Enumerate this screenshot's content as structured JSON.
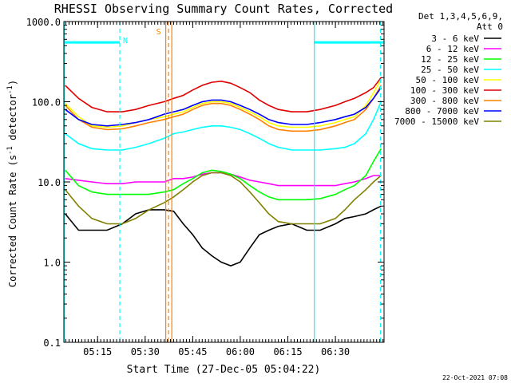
{
  "chart_data": {
    "type": "line",
    "title": "RHESSI Observing Summary Count Rates, Corrected",
    "xlabel": "Start Time (27-Dec-05 05:04:22)",
    "ylabel_parts": [
      "Corrected Count Rate (s",
      "-1",
      " detector",
      "-1",
      ")"
    ],
    "y_scale": "log",
    "ylim": [
      0.1,
      1000
    ],
    "xlim": [
      5.0728,
      6.7556
    ],
    "x_ticks": [
      {
        "t": 5.25,
        "label": "05:15"
      },
      {
        "t": 5.5,
        "label": "05:30"
      },
      {
        "t": 5.75,
        "label": "05:45"
      },
      {
        "t": 6.0,
        "label": "06:00"
      },
      {
        "t": 6.25,
        "label": "06:15"
      },
      {
        "t": 6.5,
        "label": "06:30"
      }
    ],
    "y_ticks": [
      {
        "v": 1000,
        "label": "1000.0"
      },
      {
        "v": 100,
        "label": "100.0"
      },
      {
        "v": 10,
        "label": "10.0"
      },
      {
        "v": 1,
        "label": "1.0"
      },
      {
        "v": 0.1,
        "label": "0.1"
      }
    ],
    "legend_title": [
      "Det 1,3,4,5,6,9,",
      "Att 0"
    ],
    "series": [
      {
        "name": "3 - 6 keV",
        "color": "#000000",
        "points": [
          [
            5.08,
            4.0
          ],
          [
            5.15,
            2.5
          ],
          [
            5.22,
            2.5
          ],
          [
            5.3,
            2.5
          ],
          [
            5.38,
            3.0
          ],
          [
            5.45,
            4.0
          ],
          [
            5.52,
            4.5
          ],
          [
            5.6,
            4.5
          ],
          [
            5.65,
            4.3
          ],
          [
            5.7,
            3.0
          ],
          [
            5.75,
            2.2
          ],
          [
            5.8,
            1.5
          ],
          [
            5.85,
            1.2
          ],
          [
            5.9,
            1.0
          ],
          [
            5.95,
            0.9
          ],
          [
            6.0,
            1.0
          ],
          [
            6.05,
            1.5
          ],
          [
            6.1,
            2.2
          ],
          [
            6.15,
            2.5
          ],
          [
            6.2,
            2.8
          ],
          [
            6.27,
            3.0
          ],
          [
            6.35,
            2.5
          ],
          [
            6.42,
            2.5
          ],
          [
            6.5,
            3.0
          ],
          [
            6.55,
            3.5
          ],
          [
            6.6,
            3.7
          ],
          [
            6.66,
            4.0
          ],
          [
            6.7,
            4.5
          ],
          [
            6.74,
            5.0
          ]
        ]
      },
      {
        "name": "6 - 12 keV",
        "color": "#ff00ff",
        "points": [
          [
            5.08,
            11.0
          ],
          [
            5.15,
            10.5
          ],
          [
            5.22,
            10.0
          ],
          [
            5.3,
            9.5
          ],
          [
            5.38,
            9.5
          ],
          [
            5.45,
            10.0
          ],
          [
            5.52,
            10.0
          ],
          [
            5.6,
            10.0
          ],
          [
            5.65,
            11.0
          ],
          [
            5.7,
            11.0
          ],
          [
            5.75,
            11.5
          ],
          [
            5.8,
            12.5
          ],
          [
            5.85,
            13.0
          ],
          [
            5.9,
            13.0
          ],
          [
            5.95,
            12.5
          ],
          [
            6.0,
            11.5
          ],
          [
            6.05,
            10.5
          ],
          [
            6.1,
            10.0
          ],
          [
            6.15,
            9.5
          ],
          [
            6.2,
            9.0
          ],
          [
            6.27,
            9.0
          ],
          [
            6.35,
            9.0
          ],
          [
            6.42,
            9.0
          ],
          [
            6.5,
            9.0
          ],
          [
            6.55,
            9.5
          ],
          [
            6.6,
            10.0
          ],
          [
            6.66,
            11.0
          ],
          [
            6.7,
            12.0
          ],
          [
            6.74,
            12.0
          ]
        ]
      },
      {
        "name": "12 - 25 keV",
        "color": "#00ff00",
        "points": [
          [
            5.08,
            14.0
          ],
          [
            5.15,
            9.0
          ],
          [
            5.22,
            7.5
          ],
          [
            5.3,
            7.0
          ],
          [
            5.38,
            7.0
          ],
          [
            5.45,
            7.0
          ],
          [
            5.52,
            7.0
          ],
          [
            5.6,
            7.5
          ],
          [
            5.65,
            8.0
          ],
          [
            5.7,
            9.5
          ],
          [
            5.75,
            11.0
          ],
          [
            5.8,
            13.0
          ],
          [
            5.85,
            14.0
          ],
          [
            5.9,
            13.5
          ],
          [
            5.95,
            12.5
          ],
          [
            6.0,
            11.0
          ],
          [
            6.05,
            9.0
          ],
          [
            6.1,
            7.5
          ],
          [
            6.15,
            6.5
          ],
          [
            6.2,
            6.0
          ],
          [
            6.27,
            6.0
          ],
          [
            6.35,
            6.0
          ],
          [
            6.42,
            6.2
          ],
          [
            6.5,
            7.0
          ],
          [
            6.55,
            8.0
          ],
          [
            6.6,
            9.0
          ],
          [
            6.66,
            12.0
          ],
          [
            6.7,
            18.0
          ],
          [
            6.74,
            26.0
          ]
        ]
      },
      {
        "name": "25 - 50 keV",
        "color": "#00ffff",
        "points": [
          [
            5.08,
            40.0
          ],
          [
            5.15,
            30.0
          ],
          [
            5.22,
            26.0
          ],
          [
            5.3,
            25.0
          ],
          [
            5.38,
            25.0
          ],
          [
            5.45,
            27.0
          ],
          [
            5.52,
            30.0
          ],
          [
            5.6,
            35.0
          ],
          [
            5.65,
            40.0
          ],
          [
            5.7,
            42.0
          ],
          [
            5.75,
            45.0
          ],
          [
            5.8,
            48.0
          ],
          [
            5.85,
            50.0
          ],
          [
            5.9,
            50.0
          ],
          [
            5.95,
            48.0
          ],
          [
            6.0,
            45.0
          ],
          [
            6.05,
            40.0
          ],
          [
            6.1,
            35.0
          ],
          [
            6.15,
            30.0
          ],
          [
            6.2,
            27.0
          ],
          [
            6.27,
            25.0
          ],
          [
            6.35,
            25.0
          ],
          [
            6.42,
            25.0
          ],
          [
            6.5,
            26.0
          ],
          [
            6.55,
            27.0
          ],
          [
            6.6,
            30.0
          ],
          [
            6.66,
            40.0
          ],
          [
            6.7,
            60.0
          ],
          [
            6.74,
            100.0
          ]
        ]
      },
      {
        "name": "50 - 100 keV",
        "color": "#ffff00",
        "points": [
          [
            5.08,
            95.0
          ],
          [
            5.15,
            65.0
          ],
          [
            5.22,
            50.0
          ],
          [
            5.3,
            48.0
          ],
          [
            5.38,
            50.0
          ],
          [
            5.45,
            55.0
          ],
          [
            5.52,
            60.0
          ],
          [
            5.6,
            65.0
          ],
          [
            5.65,
            70.0
          ],
          [
            5.7,
            75.0
          ],
          [
            5.75,
            85.0
          ],
          [
            5.8,
            95.0
          ],
          [
            5.85,
            100.0
          ],
          [
            5.9,
            100.0
          ],
          [
            5.95,
            95.0
          ],
          [
            6.0,
            85.0
          ],
          [
            6.05,
            75.0
          ],
          [
            6.1,
            65.0
          ],
          [
            6.15,
            55.0
          ],
          [
            6.2,
            50.0
          ],
          [
            6.27,
            48.0
          ],
          [
            6.35,
            48.0
          ],
          [
            6.42,
            50.0
          ],
          [
            6.5,
            55.0
          ],
          [
            6.55,
            60.0
          ],
          [
            6.6,
            65.0
          ],
          [
            6.66,
            90.0
          ],
          [
            6.7,
            130.0
          ],
          [
            6.74,
            190.0
          ]
        ]
      },
      {
        "name": "100 - 300 keV",
        "color": "#e00000",
        "points": [
          [
            5.08,
            160.0
          ],
          [
            5.15,
            110.0
          ],
          [
            5.22,
            85.0
          ],
          [
            5.3,
            75.0
          ],
          [
            5.38,
            75.0
          ],
          [
            5.45,
            80.0
          ],
          [
            5.52,
            90.0
          ],
          [
            5.6,
            100.0
          ],
          [
            5.65,
            110.0
          ],
          [
            5.7,
            120.0
          ],
          [
            5.75,
            140.0
          ],
          [
            5.8,
            160.0
          ],
          [
            5.85,
            175.0
          ],
          [
            5.9,
            180.0
          ],
          [
            5.95,
            170.0
          ],
          [
            6.0,
            150.0
          ],
          [
            6.05,
            130.0
          ],
          [
            6.1,
            105.0
          ],
          [
            6.15,
            90.0
          ],
          [
            6.2,
            80.0
          ],
          [
            6.27,
            75.0
          ],
          [
            6.35,
            75.0
          ],
          [
            6.42,
            80.0
          ],
          [
            6.5,
            90.0
          ],
          [
            6.55,
            100.0
          ],
          [
            6.6,
            110.0
          ],
          [
            6.66,
            130.0
          ],
          [
            6.7,
            150.0
          ],
          [
            6.74,
            200.0
          ]
        ]
      },
      {
        "name": "300 - 800 keV",
        "color": "#ff8000",
        "points": [
          [
            5.08,
            90.0
          ],
          [
            5.15,
            60.0
          ],
          [
            5.22,
            48.0
          ],
          [
            5.3,
            45.0
          ],
          [
            5.38,
            46.0
          ],
          [
            5.45,
            50.0
          ],
          [
            5.52,
            55.0
          ],
          [
            5.6,
            60.0
          ],
          [
            5.65,
            65.0
          ],
          [
            5.7,
            70.0
          ],
          [
            5.75,
            80.0
          ],
          [
            5.8,
            90.0
          ],
          [
            5.85,
            95.0
          ],
          [
            5.9,
            95.0
          ],
          [
            5.95,
            90.0
          ],
          [
            6.0,
            80.0
          ],
          [
            6.05,
            70.0
          ],
          [
            6.1,
            60.0
          ],
          [
            6.15,
            50.0
          ],
          [
            6.2,
            45.0
          ],
          [
            6.27,
            43.0
          ],
          [
            6.35,
            43.0
          ],
          [
            6.42,
            45.0
          ],
          [
            6.5,
            50.0
          ],
          [
            6.55,
            55.0
          ],
          [
            6.6,
            60.0
          ],
          [
            6.66,
            80.0
          ],
          [
            6.7,
            110.0
          ],
          [
            6.74,
            160.0
          ]
        ]
      },
      {
        "name": "800 - 7000 keV",
        "color": "#0000ff",
        "points": [
          [
            5.08,
            80.0
          ],
          [
            5.15,
            60.0
          ],
          [
            5.22,
            52.0
          ],
          [
            5.3,
            50.0
          ],
          [
            5.38,
            52.0
          ],
          [
            5.45,
            55.0
          ],
          [
            5.52,
            60.0
          ],
          [
            5.6,
            70.0
          ],
          [
            5.65,
            75.0
          ],
          [
            5.7,
            80.0
          ],
          [
            5.75,
            90.0
          ],
          [
            5.8,
            100.0
          ],
          [
            5.85,
            105.0
          ],
          [
            5.9,
            105.0
          ],
          [
            5.95,
            100.0
          ],
          [
            6.0,
            90.0
          ],
          [
            6.05,
            80.0
          ],
          [
            6.1,
            70.0
          ],
          [
            6.15,
            60.0
          ],
          [
            6.2,
            55.0
          ],
          [
            6.27,
            52.0
          ],
          [
            6.35,
            52.0
          ],
          [
            6.42,
            55.0
          ],
          [
            6.5,
            60.0
          ],
          [
            6.55,
            65.0
          ],
          [
            6.6,
            70.0
          ],
          [
            6.66,
            85.0
          ],
          [
            6.7,
            110.0
          ],
          [
            6.74,
            150.0
          ]
        ]
      },
      {
        "name": "7000 - 15000 keV",
        "color": "#808000",
        "points": [
          [
            5.08,
            8.0
          ],
          [
            5.15,
            5.0
          ],
          [
            5.22,
            3.5
          ],
          [
            5.3,
            3.0
          ],
          [
            5.38,
            3.0
          ],
          [
            5.45,
            3.5
          ],
          [
            5.52,
            4.5
          ],
          [
            5.6,
            5.5
          ],
          [
            5.65,
            6.5
          ],
          [
            5.7,
            8.0
          ],
          [
            5.75,
            10.0
          ],
          [
            5.8,
            12.0
          ],
          [
            5.85,
            13.0
          ],
          [
            5.9,
            13.0
          ],
          [
            5.95,
            12.0
          ],
          [
            6.0,
            10.0
          ],
          [
            6.05,
            7.5
          ],
          [
            6.1,
            5.5
          ],
          [
            6.15,
            4.0
          ],
          [
            6.2,
            3.2
          ],
          [
            6.27,
            3.0
          ],
          [
            6.35,
            3.0
          ],
          [
            6.42,
            3.0
          ],
          [
            6.5,
            3.5
          ],
          [
            6.55,
            4.5
          ],
          [
            6.6,
            6.0
          ],
          [
            6.66,
            8.0
          ],
          [
            6.7,
            10.0
          ],
          [
            6.74,
            12.0
          ]
        ]
      }
    ],
    "annotations": [
      {
        "type": "bar",
        "label": "N",
        "color": "#00ffff",
        "x0": 5.0728,
        "x1": 5.3667,
        "level": 550
      },
      {
        "type": "bar",
        "label": "",
        "color": "#00ffff",
        "x0": 6.3889,
        "x1": 6.7556,
        "level": 550
      },
      {
        "type": "vline",
        "style": "dashed",
        "color": "#00ffff",
        "t": 5.3667
      },
      {
        "type": "vline",
        "style": "dashed",
        "color": "#00ffff",
        "t": 6.7364
      },
      {
        "type": "vline",
        "style": "solid",
        "color": "#00ffff",
        "t": 5.075
      },
      {
        "type": "vline",
        "style": "solid",
        "color": "#00ffff",
        "t": 6.3889
      },
      {
        "type": "vline",
        "style": "solid",
        "color": "#ff8000",
        "t": 5.6083
      },
      {
        "type": "vline",
        "style": "dashed",
        "color": "#ff8000",
        "t": 5.6233
      },
      {
        "type": "vline",
        "style": "solid",
        "color": "#ff8000",
        "t": 5.64
      },
      {
        "type": "marker",
        "label": "S",
        "color": "#ff8000",
        "t": 5.6083
      }
    ]
  },
  "footer": {
    "timestamp": "22-Oct-2021 07:08"
  }
}
